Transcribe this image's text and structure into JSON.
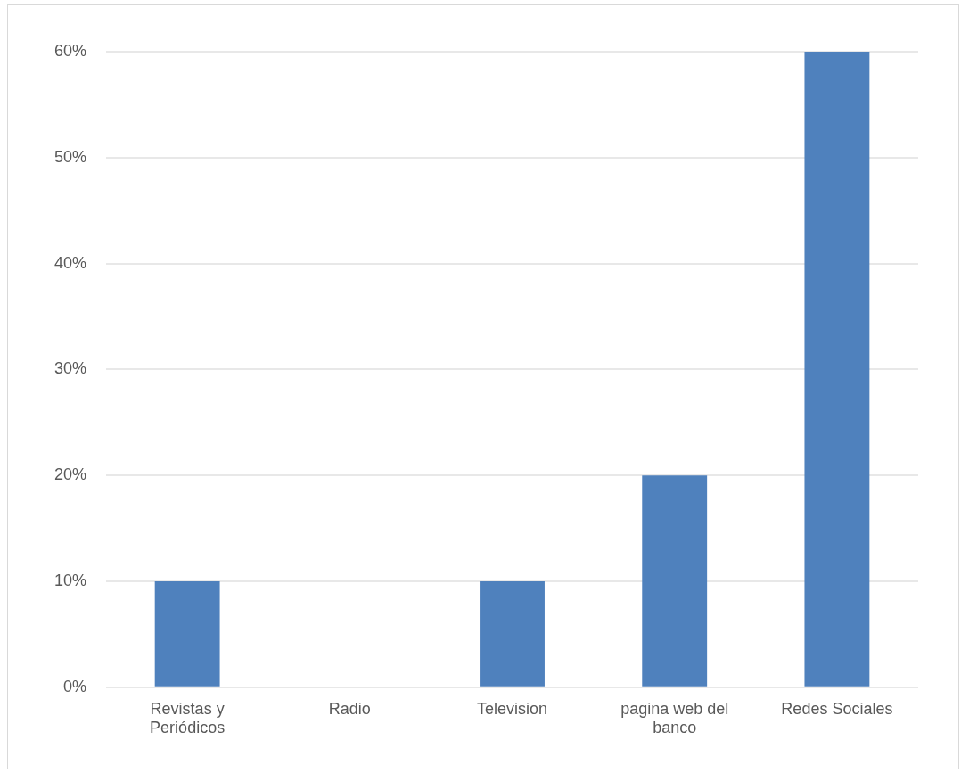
{
  "chart_data": {
    "type": "bar",
    "categories": [
      "Revistas y Periódicos",
      "Radio",
      "Television",
      "pagina web del banco",
      "Redes Sociales"
    ],
    "values": [
      10,
      0,
      10,
      20,
      60
    ],
    "color": "#4f81bd",
    "ylim": [
      0,
      60
    ],
    "yticks": [
      {
        "value": 0,
        "label": "0%"
      },
      {
        "value": 10,
        "label": "10%"
      },
      {
        "value": 20,
        "label": "20%"
      },
      {
        "value": 30,
        "label": "30%"
      },
      {
        "value": 40,
        "label": "40%"
      },
      {
        "value": 50,
        "label": "50%"
      },
      {
        "value": 60,
        "label": "60%"
      }
    ],
    "grid": "y"
  }
}
